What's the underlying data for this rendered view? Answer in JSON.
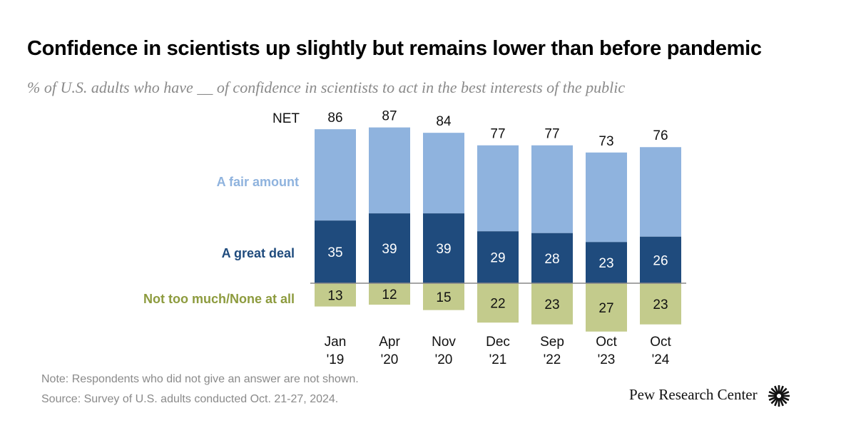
{
  "title": "Confidence in scientists up slightly but remains lower than before pandemic",
  "subtitle": "% of U.S. adults who have __ of confidence in scientists to act in the best interests of the public",
  "chart_data": {
    "type": "bar",
    "stacked": true,
    "categories": [
      [
        "Jan",
        "'19"
      ],
      [
        "Apr",
        "'20"
      ],
      [
        "Nov",
        "'20"
      ],
      [
        "Dec",
        "'21"
      ],
      [
        "Sep",
        "'22"
      ],
      [
        "Oct",
        "'23"
      ],
      [
        "Oct",
        "'24"
      ]
    ],
    "net_label": "NET",
    "net": [
      86,
      87,
      84,
      77,
      77,
      73,
      76
    ],
    "series": [
      {
        "name": "A great deal",
        "values": [
          35,
          39,
          39,
          29,
          28,
          23,
          26
        ],
        "color": "#1f4b7d"
      },
      {
        "name": "A fair amount",
        "values": [
          51,
          48,
          45,
          48,
          49,
          50,
          50
        ],
        "color": "#8fb3de"
      },
      {
        "name": "Not too much/None at all",
        "values": [
          13,
          12,
          15,
          22,
          23,
          27,
          23
        ],
        "color": "#c3cb8c",
        "negative": true
      }
    ],
    "label_colors": {
      "A fair amount": "#8fb3de",
      "A great deal": "#1f4b7d",
      "Not too much/None at all": "#8d9b3e"
    }
  },
  "note": "Note: Respondents who did not give an answer are not shown.",
  "source": "Source: Survey of U.S. adults conducted Oct. 21-27, 2024.",
  "logo_text": "Pew Research Center"
}
